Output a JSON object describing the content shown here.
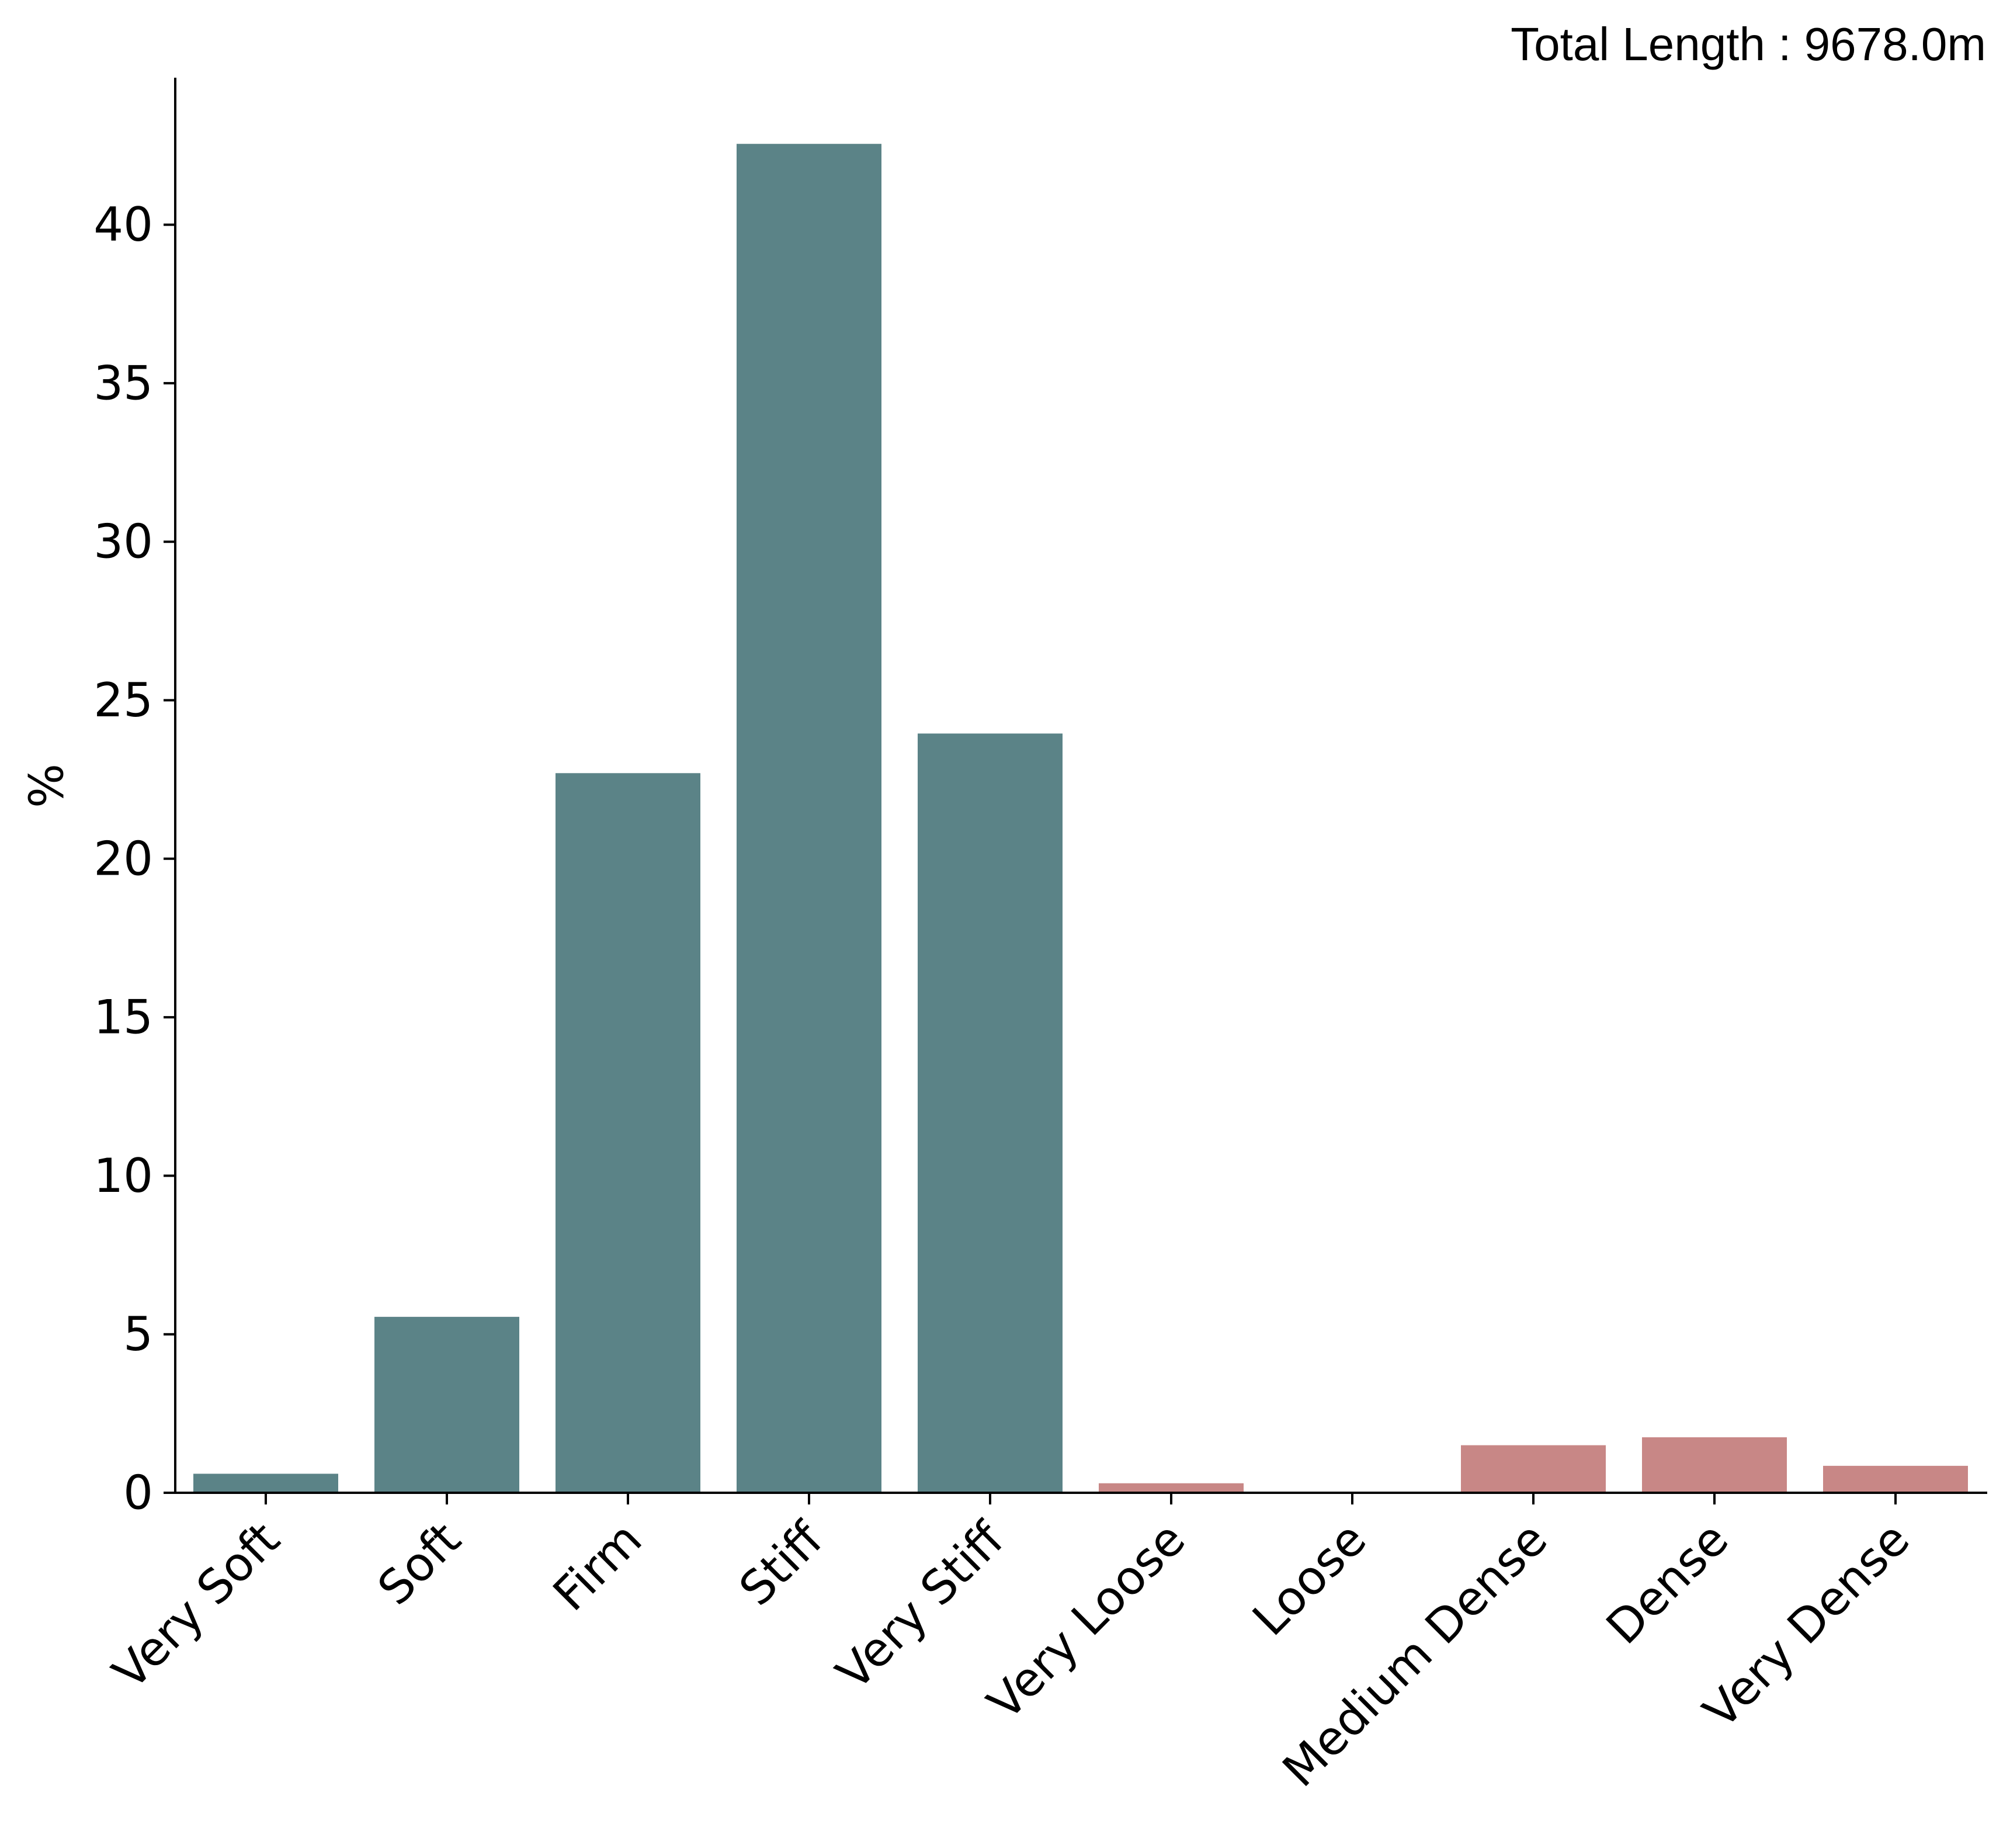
{
  "chart_data": {
    "type": "bar",
    "annotation": "Total Length : 9678.0m",
    "ylabel": "%",
    "xlabel": "",
    "categories": [
      "Very Soft",
      "Soft",
      "Firm",
      "Stiff",
      "Very Stiff",
      "Very Loose",
      "Loose",
      "Medium Dense",
      "Dense",
      "Very Dense"
    ],
    "values": [
      0.6,
      5.55,
      22.7,
      42.55,
      23.95,
      0.3,
      0.0,
      1.5,
      1.75,
      0.85
    ],
    "bar_colors": [
      "#5b8387",
      "#5b8387",
      "#5b8387",
      "#5b8387",
      "#5b8387",
      "#c88786",
      "#c88786",
      "#c88786",
      "#c88786",
      "#c88786"
    ],
    "yticks": [
      0,
      5,
      10,
      15,
      20,
      25,
      30,
      35,
      40
    ],
    "ylim": [
      0,
      44.6
    ],
    "grid": false,
    "legend": "none"
  }
}
